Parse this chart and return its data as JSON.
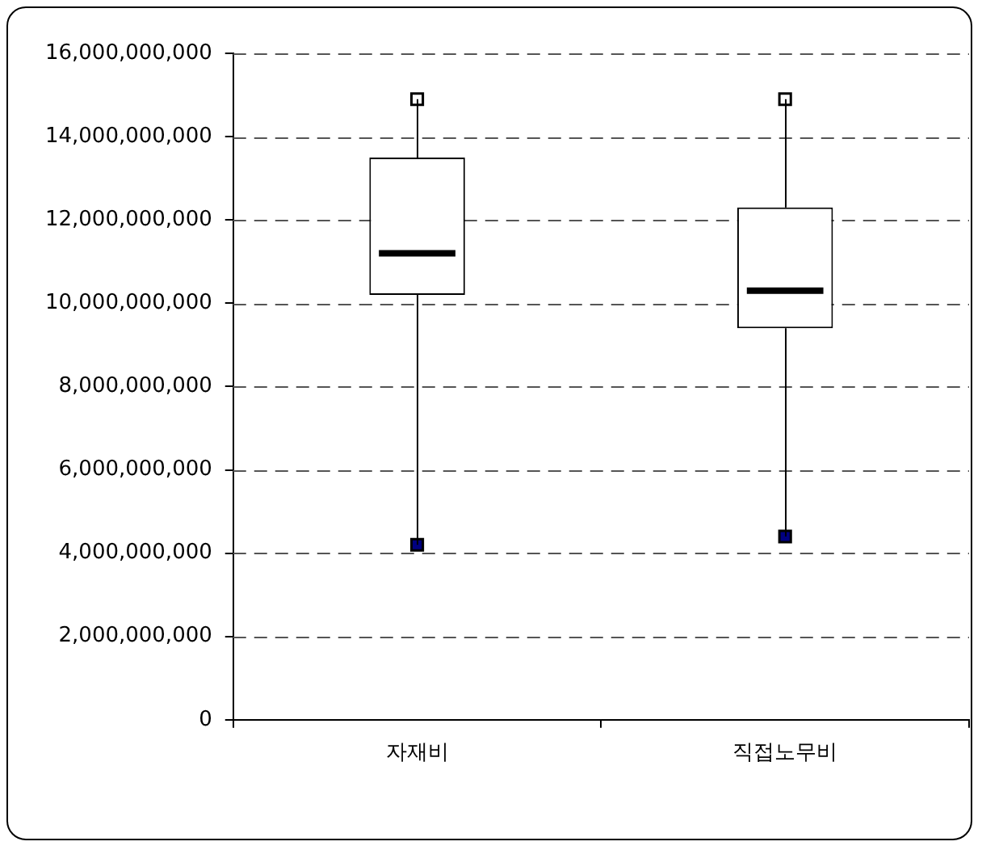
{
  "chart_data": {
    "type": "box",
    "categories": [
      "자재비",
      "직접노무비"
    ],
    "boxes": [
      {
        "low": 4200000000,
        "q1": 10200000000,
        "median": 11200000000,
        "q3": 13500000000,
        "high": 14900000000
      },
      {
        "low": 4400000000,
        "q1": 9400000000,
        "median": 10300000000,
        "q3": 12300000000,
        "high": 14900000000
      }
    ],
    "ylim": [
      0,
      16000000000
    ],
    "yticks": [
      0,
      {
        "value": 2000000000,
        "label": "2,000,000,000"
      },
      {
        "value": 4000000000,
        "label": "4,000,000,000"
      },
      {
        "value": 6000000000,
        "label": "6,000,000,000"
      },
      {
        "value": 8000000000,
        "label": "8,000,000,000"
      },
      {
        "value": 10000000000,
        "label": "10,000,000,000"
      },
      {
        "value": 12000000000,
        "label": "12,000,000,000"
      },
      {
        "value": 14000000000,
        "label": "14,000,000,000"
      },
      {
        "value": 16000000000,
        "label": "16,000,000,000"
      }
    ],
    "series": [
      {
        "type": "scatter",
        "x": [
          "자재비",
          "직접노무비"
        ],
        "values": [
          14900000000,
          14900000000
        ],
        "color": "#ffffff",
        "marker": "square"
      },
      {
        "type": "scatter",
        "x": [
          "자재비",
          "직접노무비"
        ],
        "values": [
          4200000000,
          4400000000
        ],
        "color": "#000080",
        "marker": "square"
      }
    ],
    "grid": "y",
    "legend": false
  }
}
